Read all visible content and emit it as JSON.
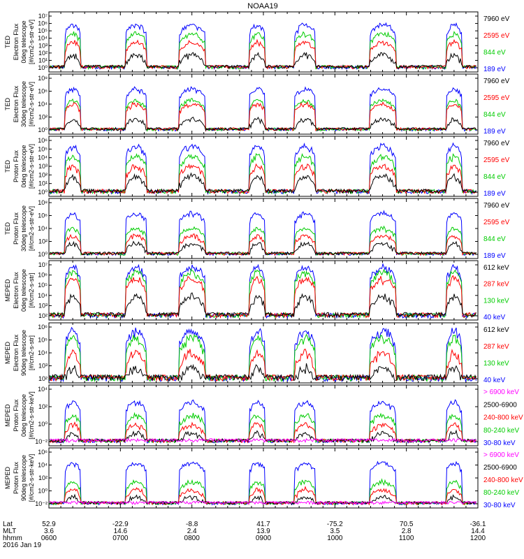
{
  "title": "NOAA19",
  "colors": {
    "blue": "#0000ff",
    "red": "#ff0000",
    "green": "#00cc00",
    "black": "#000000",
    "magenta": "#ff00ff"
  },
  "panels": [
    {
      "instrument": "TED",
      "ylabel": [
        "Electron Flux",
        "0deg telescope",
        "[#/cm2-s-str-eV]"
      ],
      "yticks": [
        "10⁷",
        "10⁶",
        "10⁵",
        "10⁴",
        "10³",
        "10²",
        "10¹",
        "10⁰"
      ],
      "legend": [
        {
          "text": "7960 eV",
          "color": "black"
        },
        {
          "text": "2595 eV",
          "color": "red"
        },
        {
          "text": "844 eV",
          "color": "green"
        },
        {
          "text": "189 eV",
          "color": "blue"
        }
      ]
    },
    {
      "instrument": "TED",
      "ylabel": [
        "Electron Flux",
        "30deg telescope",
        "[#/cm2-s-str-eV]"
      ],
      "yticks": [
        "10⁸",
        "10⁶",
        "10⁴",
        "10²",
        "10⁰"
      ],
      "legend": [
        {
          "text": "7960 eV",
          "color": "black"
        },
        {
          "text": "2595 eV",
          "color": "red"
        },
        {
          "text": "844 eV",
          "color": "green"
        },
        {
          "text": "189 eV",
          "color": "blue"
        }
      ]
    },
    {
      "instrument": "TED",
      "ylabel": [
        "Proton Flux",
        "0deg telescope",
        "[#/cm2-s-str-eV]"
      ],
      "yticks": [
        "10⁶",
        "10⁵",
        "10⁴",
        "10³",
        "10²",
        "10¹",
        "10⁰"
      ],
      "legend": [
        {
          "text": "7960 eV",
          "color": "black"
        },
        {
          "text": "2595 eV",
          "color": "red"
        },
        {
          "text": "844 eV",
          "color": "green"
        },
        {
          "text": "189 eV",
          "color": "blue"
        }
      ]
    },
    {
      "instrument": "TED",
      "ylabel": [
        "Proton Flux",
        "30deg telescope",
        "[#/cm2-s-str-eV]"
      ],
      "yticks": [
        "10⁸",
        "10⁶",
        "10⁴",
        "10²",
        "10⁰"
      ],
      "legend": [
        {
          "text": "7960 eV",
          "color": "black"
        },
        {
          "text": "2595 eV",
          "color": "red"
        },
        {
          "text": "844 eV",
          "color": "green"
        },
        {
          "text": "189 eV",
          "color": "blue"
        }
      ]
    },
    {
      "instrument": "MEPED",
      "ylabel": [
        "Electron Flux",
        "0deg telescope",
        "[#/cm2-s-str]"
      ],
      "yticks": [
        "10⁷",
        "10⁶",
        "10⁵",
        "10⁴",
        "10³",
        "10²"
      ],
      "legend": [
        {
          "text": "612 keV",
          "color": "black"
        },
        {
          "text": "287 keV",
          "color": "red"
        },
        {
          "text": "130 keV",
          "color": "green"
        },
        {
          "text": "40 keV",
          "color": "blue"
        }
      ]
    },
    {
      "instrument": "MEPED",
      "ylabel": [
        "Electron Flux",
        "90deg telescope",
        "[#/cm2-s-str]"
      ],
      "yticks": [
        "10⁶",
        "10⁵",
        "10⁴",
        "10³",
        "10²"
      ],
      "legend": [
        {
          "text": "612 keV",
          "color": "black"
        },
        {
          "text": "287 keV",
          "color": "red"
        },
        {
          "text": "130 keV",
          "color": "green"
        },
        {
          "text": "40 keV",
          "color": "blue"
        }
      ]
    },
    {
      "instrument": "MEPED",
      "ylabel": [
        "Proton Flux",
        "0deg telescope",
        "[#/cm2-s-str-keV]"
      ],
      "yticks": [
        "10⁴",
        "10²",
        "10⁰",
        "10⁻²"
      ],
      "legend": [
        {
          "text": "> 6900 keV",
          "color": "magenta"
        },
        {
          "text": "2500-6900",
          "color": "black"
        },
        {
          "text": "240-800 keV",
          "color": "red"
        },
        {
          "text": "80-240 keV",
          "color": "green"
        },
        {
          "text": "30-80 keV",
          "color": "blue"
        }
      ]
    },
    {
      "instrument": "MEPED",
      "ylabel": [
        "Proton Flux",
        "90deg telescope",
        "[#/cm2-s-str-keV]"
      ],
      "yticks": [
        "10⁶",
        "10⁴",
        "10²",
        "10⁰",
        "10⁻²"
      ],
      "legend": [
        {
          "text": "> 6900 keV",
          "color": "magenta"
        },
        {
          "text": "2500-6900",
          "color": "black"
        },
        {
          "text": "240-800 keV",
          "color": "red"
        },
        {
          "text": "80-240 keV",
          "color": "green"
        },
        {
          "text": "30-80 keV",
          "color": "blue"
        }
      ]
    }
  ],
  "xaxis": {
    "row_labels": [
      "Lat",
      "MLT",
      "hhmm",
      "2016 Jan 19"
    ],
    "ticks": [
      {
        "lat": "52.9",
        "mlt": "3.6",
        "hhmm": "0600"
      },
      {
        "lat": "-22.9",
        "mlt": "14.6",
        "hhmm": "0700"
      },
      {
        "lat": "-8.8",
        "mlt": "2.4",
        "hhmm": "0800"
      },
      {
        "lat": "41.7",
        "mlt": "13.9",
        "hhmm": "0900"
      },
      {
        "lat": "-75.2",
        "mlt": "3.5",
        "hhmm": "1000"
      },
      {
        "lat": "70.5",
        "mlt": "2.8",
        "hhmm": "1100"
      },
      {
        "lat": "-36.1",
        "mlt": "14.4",
        "hhmm": "1200"
      }
    ]
  },
  "chart_data": {
    "type": "line",
    "title": "NOAA19",
    "x_unit": "hhmm",
    "x_range": [
      "0600",
      "1200"
    ],
    "y_scale": "log",
    "passes_hhmm": [
      "0620",
      "0713",
      "0800",
      "0855",
      "0935",
      "1040",
      "1140"
    ],
    "panels": [
      {
        "name": "TED Electron Flux 0deg",
        "ylim": [
          1,
          10000000
        ],
        "series": [
          {
            "name": "7960 eV",
            "color": "black",
            "peak": 100
          },
          {
            "name": "2595 eV",
            "color": "red",
            "peak": 3000
          },
          {
            "name": "844 eV",
            "color": "green",
            "peak": 30000
          },
          {
            "name": "189 eV",
            "color": "blue",
            "peak": 300000
          }
        ]
      },
      {
        "name": "TED Electron Flux 30deg",
        "ylim": [
          1,
          100000000
        ],
        "series": [
          {
            "name": "7960 eV",
            "color": "black",
            "peak": 100
          },
          {
            "name": "2595 eV",
            "color": "red",
            "peak": 10000
          },
          {
            "name": "844 eV",
            "color": "green",
            "peak": 30000
          },
          {
            "name": "189 eV",
            "color": "blue",
            "peak": 1000000
          }
        ]
      },
      {
        "name": "TED Proton Flux 0deg",
        "ylim": [
          1,
          1000000
        ],
        "series": [
          {
            "name": "7960 eV",
            "color": "black",
            "peak": 100
          },
          {
            "name": "2595 eV",
            "color": "red",
            "peak": 1000
          },
          {
            "name": "844 eV",
            "color": "green",
            "peak": 10000
          },
          {
            "name": "189 eV",
            "color": "blue",
            "peak": 100000
          }
        ]
      },
      {
        "name": "TED Proton Flux 30deg",
        "ylim": [
          1,
          100000000
        ],
        "series": [
          {
            "name": "7960 eV",
            "color": "black",
            "peak": 100
          },
          {
            "name": "2595 eV",
            "color": "red",
            "peak": 1000
          },
          {
            "name": "844 eV",
            "color": "green",
            "peak": 10000
          },
          {
            "name": "189 eV",
            "color": "blue",
            "peak": 1000000
          }
        ]
      },
      {
        "name": "MEPED Electron Flux 0deg",
        "ylim": [
          100,
          10000000
        ],
        "series": [
          {
            "name": "612 keV",
            "color": "black",
            "peak": 10000
          },
          {
            "name": "287 keV",
            "color": "red",
            "peak": 300000
          },
          {
            "name": "130 keV",
            "color": "green",
            "peak": 1000000
          },
          {
            "name": "40 keV",
            "color": "blue",
            "peak": 3000000
          }
        ]
      },
      {
        "name": "MEPED Electron Flux 90deg",
        "ylim": [
          100,
          1000000
        ],
        "series": [
          {
            "name": "612 keV",
            "color": "black",
            "peak": 1000
          },
          {
            "name": "287 keV",
            "color": "red",
            "peak": 10000
          },
          {
            "name": "130 keV",
            "color": "green",
            "peak": 100000
          },
          {
            "name": "40 keV",
            "color": "blue",
            "peak": 300000
          }
        ]
      },
      {
        "name": "MEPED Proton Flux 0deg",
        "ylim": [
          0.01,
          100000
        ],
        "series": [
          {
            "name": "> 6900 keV",
            "color": "magenta",
            "peak": 0.03
          },
          {
            "name": "2500-6900",
            "color": "black",
            "peak": 0.3
          },
          {
            "name": "240-800 keV",
            "color": "red",
            "peak": 3
          },
          {
            "name": "80-240 keV",
            "color": "green",
            "peak": 30
          },
          {
            "name": "30-80 keV",
            "color": "blue",
            "peak": 1000
          }
        ]
      },
      {
        "name": "MEPED Proton Flux 90deg",
        "ylim": [
          0.01,
          1000000
        ],
        "series": [
          {
            "name": "> 6900 keV",
            "color": "magenta",
            "peak": 0.03
          },
          {
            "name": "2500-6900",
            "color": "black",
            "peak": 0.3
          },
          {
            "name": "240-800 keV",
            "color": "red",
            "peak": 3
          },
          {
            "name": "80-240 keV",
            "color": "green",
            "peak": 30
          },
          {
            "name": "30-80 keV",
            "color": "blue",
            "peak": 10000
          }
        ]
      }
    ]
  }
}
